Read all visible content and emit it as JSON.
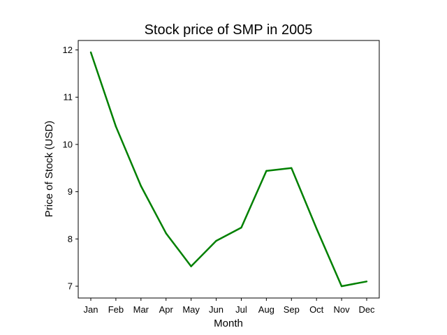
{
  "chart_data": {
    "type": "line",
    "title": "Stock price of SMP in 2005",
    "xlabel": "Month",
    "ylabel": "Price of Stock (USD)",
    "categories": [
      "Jan",
      "Feb",
      "Mar",
      "Apr",
      "May",
      "Jun",
      "Jul",
      "Aug",
      "Sep",
      "Oct",
      "Nov",
      "Dec"
    ],
    "series": [
      {
        "values": [
          11.95,
          10.38,
          9.12,
          8.12,
          7.42,
          7.96,
          8.24,
          9.44,
          9.5,
          8.22,
          7.0,
          7.1
        ],
        "color": "#008000"
      }
    ],
    "yticks": [
      7,
      8,
      9,
      10,
      11,
      12
    ],
    "ylim": [
      6.75,
      12.2
    ],
    "grid": false,
    "legend": "none"
  }
}
